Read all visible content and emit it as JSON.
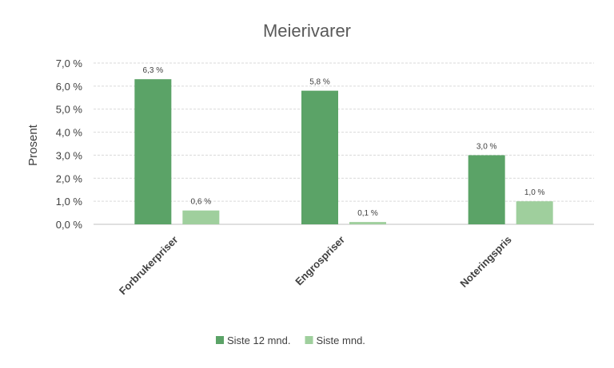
{
  "chart_data": {
    "type": "bar",
    "title": "Meierivarer",
    "xlabel": "",
    "ylabel": "Prosent",
    "ylim": [
      0,
      7
    ],
    "yticks": [
      "0,0 %",
      "1,0 %",
      "2,0 %",
      "3,0 %",
      "4,0 %",
      "5,0 %",
      "6,0 %",
      "7,0 %"
    ],
    "categories": [
      "Forbrukerpriser",
      "Engrospriser",
      "Noteringspris"
    ],
    "series": [
      {
        "name": "Siste 12 mnd.",
        "color": "#5ba367",
        "values": [
          6.3,
          5.8,
          3.0
        ],
        "labels": [
          "6,3 %",
          "5,8 %",
          "3,0 %"
        ]
      },
      {
        "name": "Siste mnd.",
        "color": "#9fcf9d",
        "values": [
          0.6,
          0.1,
          1.0
        ],
        "labels": [
          "0,6 %",
          "0,1 %",
          "1,0 %"
        ]
      }
    ],
    "grid": true,
    "legend_position": "bottom"
  }
}
